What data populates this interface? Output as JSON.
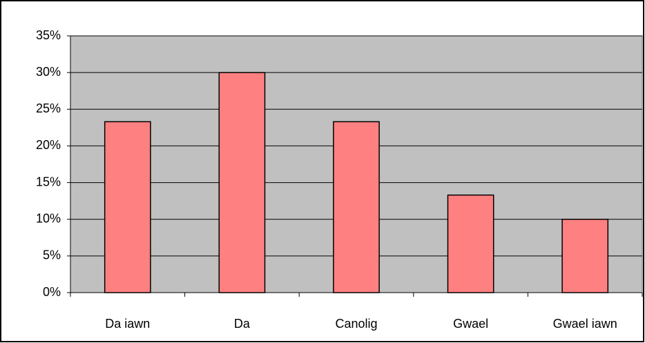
{
  "chart_data": {
    "type": "bar",
    "categories": [
      "Da iawn",
      "Da",
      "Canolig",
      "Gwael",
      "Gwael iawn"
    ],
    "values": [
      23.3,
      30,
      23.3,
      13.3,
      10
    ],
    "color": "#ff8080",
    "ylim": [
      0,
      35
    ],
    "yticks": [
      {
        "value": 0,
        "label": "0%"
      },
      {
        "value": 5,
        "label": "5%"
      },
      {
        "value": 10,
        "label": "10%"
      },
      {
        "value": 15,
        "label": "15%"
      },
      {
        "value": 20,
        "label": "20%"
      },
      {
        "value": 25,
        "label": "25%"
      },
      {
        "value": 30,
        "label": "30%"
      },
      {
        "value": 35,
        "label": "35%"
      }
    ],
    "grid": true
  }
}
